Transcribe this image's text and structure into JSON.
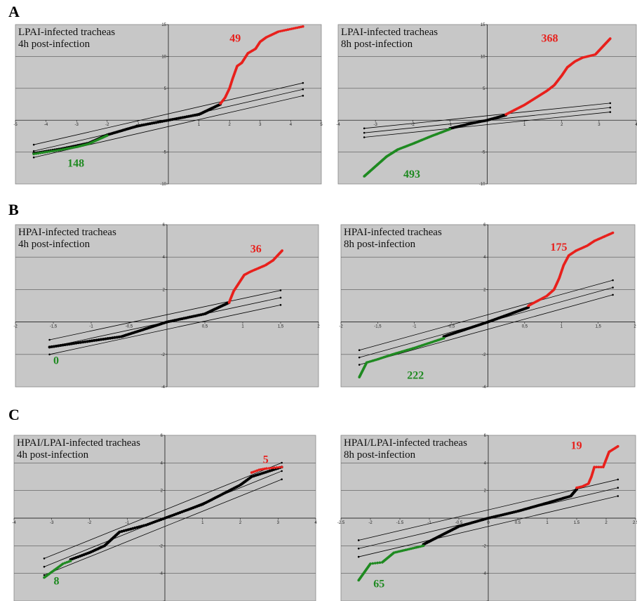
{
  "sections": [
    {
      "label": "A"
    },
    {
      "label": "B"
    },
    {
      "label": "C"
    }
  ],
  "colors": {
    "up": "#e8201c",
    "down": "#1f8a21",
    "mid": "#000000",
    "panel": "#c7c7c7"
  },
  "chart_data": [
    {
      "type": "scatter",
      "section": "A",
      "title_lines": [
        "LPAI-infected tracheas",
        "4h post-infection"
      ],
      "xlim": [
        -5,
        5
      ],
      "ylim": [
        -10,
        15
      ],
      "xticks": [
        -5,
        -4,
        -3,
        -2,
        -1,
        0,
        1,
        2,
        3,
        4,
        5
      ],
      "yticks": [
        -10,
        -5,
        0,
        5,
        10,
        15
      ],
      "yticklabels": [
        "-10",
        "-5",
        "",
        "5",
        "10",
        "15"
      ],
      "gridlines_y": [
        -5,
        5,
        10
      ],
      "diag": {
        "slope": 1.1,
        "offset": 1.0,
        "x0": -4.4,
        "x1": 4.4
      },
      "central": [
        [
          -4.4,
          -5.2
        ],
        [
          -3.5,
          -4.5
        ],
        [
          -2.6,
          -3.6
        ],
        [
          -2.0,
          -2.3
        ],
        [
          -1.0,
          -0.9
        ],
        [
          0,
          0
        ],
        [
          1.0,
          0.9
        ],
        [
          1.7,
          2.5
        ]
      ],
      "up": [
        [
          1.7,
          2.6
        ],
        [
          1.85,
          3.5
        ],
        [
          2.0,
          5.0
        ],
        [
          2.1,
          6.5
        ],
        [
          2.25,
          8.5
        ],
        [
          2.4,
          9.0
        ],
        [
          2.6,
          10.5
        ],
        [
          2.85,
          11.2
        ],
        [
          3.0,
          12.3
        ],
        [
          3.2,
          13.0
        ],
        [
          3.6,
          13.9
        ],
        [
          4.4,
          14.7
        ]
      ],
      "down": [
        [
          -2.0,
          -2.4
        ],
        [
          -2.6,
          -3.7
        ],
        [
          -3.0,
          -4.2
        ],
        [
          -3.6,
          -4.7
        ],
        [
          -4.4,
          -5.3
        ]
      ],
      "up_count": {
        "text": "49",
        "x": 2.0,
        "y": 12.3
      },
      "down_count": {
        "text": "148",
        "x": -3.3,
        "y": -7.3
      }
    },
    {
      "type": "scatter",
      "section": "A",
      "title_lines": [
        "LPAI-infected tracheas",
        "8h post-infection"
      ],
      "xlim": [
        -4,
        4
      ],
      "ylim": [
        -10,
        15
      ],
      "xticks": [
        -4,
        -3,
        -2,
        -1,
        0,
        1,
        2,
        3,
        4
      ],
      "yticks": [
        -10,
        -5,
        0,
        5,
        10,
        15
      ],
      "yticklabels": [
        "-10",
        "-5",
        "",
        "5",
        "10",
        "15"
      ],
      "gridlines_y": [
        -5,
        5,
        10
      ],
      "diag": {
        "slope": 0.6,
        "offset": 0.7,
        "x0": -3.3,
        "x1": 3.3
      },
      "central": [
        [
          -1.0,
          -1.3
        ],
        [
          -0.5,
          -0.6
        ],
        [
          0,
          0
        ],
        [
          0.5,
          0.8
        ]
      ],
      "up": [
        [
          0.5,
          0.9
        ],
        [
          0.8,
          1.8
        ],
        [
          1.0,
          2.4
        ],
        [
          1.3,
          3.5
        ],
        [
          1.6,
          4.6
        ],
        [
          1.8,
          5.5
        ],
        [
          2.0,
          7.0
        ],
        [
          2.15,
          8.3
        ],
        [
          2.35,
          9.2
        ],
        [
          2.55,
          9.8
        ],
        [
          2.9,
          10.3
        ],
        [
          3.3,
          12.8
        ]
      ],
      "down": [
        [
          -1.0,
          -1.4
        ],
        [
          -1.5,
          -2.5
        ],
        [
          -2.0,
          -3.7
        ],
        [
          -2.4,
          -4.6
        ],
        [
          -2.7,
          -5.7
        ],
        [
          -3.3,
          -8.8
        ]
      ],
      "up_count": {
        "text": "368",
        "x": 1.45,
        "y": 12.3
      },
      "down_count": {
        "text": "493",
        "x": -2.25,
        "y": -9.0
      }
    },
    {
      "type": "scatter",
      "section": "B",
      "title_lines": [
        "HPAI-infected tracheas",
        "4h post-infection"
      ],
      "xlim": [
        -2,
        2
      ],
      "ylim": [
        -4,
        6
      ],
      "xticks": [
        -2,
        -1.5,
        -1,
        -0.5,
        0,
        0.5,
        1,
        1.5,
        2
      ],
      "xticklabels": [
        "-2",
        "-1,5",
        "-1",
        "-0,5",
        "",
        "0,5",
        "1",
        "1,5",
        "2"
      ],
      "yticks": [
        -4,
        -2,
        0,
        2,
        4,
        6
      ],
      "yticklabels": [
        "-4",
        "-2",
        "",
        "2",
        "4",
        "6"
      ],
      "gridlines_y": [
        -2,
        2,
        4
      ],
      "diag": {
        "slope": 1.0,
        "offset": 0.45,
        "x0": -1.55,
        "x1": 1.5
      },
      "central": [
        [
          -1.55,
          -1.55
        ],
        [
          -1.2,
          -1.3
        ],
        [
          -0.6,
          -0.9
        ],
        [
          0,
          0
        ],
        [
          0.5,
          0.5
        ],
        [
          0.82,
          1.2
        ]
      ],
      "up": [
        [
          0.82,
          1.2
        ],
        [
          0.88,
          1.9
        ],
        [
          0.95,
          2.4
        ],
        [
          1.02,
          2.9
        ],
        [
          1.1,
          3.1
        ],
        [
          1.2,
          3.3
        ],
        [
          1.3,
          3.5
        ],
        [
          1.4,
          3.8
        ],
        [
          1.52,
          4.4
        ]
      ],
      "down": [],
      "up_count": {
        "text": "36",
        "x": 1.1,
        "y": 4.3
      },
      "down_count": {
        "text": "0",
        "x": -1.5,
        "y": -2.6
      }
    },
    {
      "type": "scatter",
      "section": "B",
      "title_lines": [
        "HPAI-infected tracheas",
        "8h post-infection"
      ],
      "xlim": [
        -2,
        2
      ],
      "ylim": [
        -4,
        6
      ],
      "xticks": [
        -2,
        -1.5,
        -1,
        -0.5,
        0,
        0.5,
        1,
        1.5,
        2
      ],
      "xticklabels": [
        "-2",
        "-1,5",
        "-1",
        "-0,5",
        "",
        "0,5",
        "1",
        "1,5",
        "2"
      ],
      "yticks": [
        -4,
        -2,
        0,
        2,
        4,
        6
      ],
      "yticklabels": [
        "-4",
        "-2",
        "",
        "2",
        "4",
        "6"
      ],
      "gridlines_y": [
        -2,
        2,
        4
      ],
      "diag": {
        "slope": 1.25,
        "offset": 0.45,
        "x0": -1.75,
        "x1": 1.7
      },
      "central": [
        [
          -0.6,
          -0.9
        ],
        [
          0,
          0
        ],
        [
          0.55,
          0.9
        ]
      ],
      "up": [
        [
          0.55,
          1.0
        ],
        [
          0.8,
          1.6
        ],
        [
          0.9,
          2.0
        ],
        [
          0.97,
          2.7
        ],
        [
          1.03,
          3.5
        ],
        [
          1.1,
          4.1
        ],
        [
          1.2,
          4.4
        ],
        [
          1.35,
          4.7
        ],
        [
          1.45,
          5.0
        ],
        [
          1.7,
          5.5
        ]
      ],
      "down": [
        [
          -0.6,
          -1.0
        ],
        [
          -1.0,
          -1.6
        ],
        [
          -1.3,
          -2.0
        ],
        [
          -1.5,
          -2.3
        ],
        [
          -1.65,
          -2.5
        ],
        [
          -1.75,
          -3.4
        ]
      ],
      "up_count": {
        "text": "175",
        "x": 0.85,
        "y": 4.4
      },
      "down_count": {
        "text": "222",
        "x": -1.1,
        "y": -3.5
      }
    },
    {
      "type": "scatter",
      "section": "C",
      "title_lines": [
        "HPAI/LPAI-infected tracheas",
        "4h post-infection"
      ],
      "xlim": [
        -4,
        4
      ],
      "ylim": [
        -6,
        6
      ],
      "xticks": [
        -4,
        -3,
        -2,
        -1,
        0,
        1,
        2,
        3,
        4
      ],
      "yticks": [
        -6,
        -4,
        -2,
        0,
        2,
        4,
        6
      ],
      "yticklabels": [
        "",
        "-4",
        "-2",
        "",
        "2",
        "4",
        "6"
      ],
      "gridlines_y": [
        -4,
        -2,
        2,
        4
      ],
      "diag": {
        "slope": 1.1,
        "offset": 0.6,
        "x0": -3.2,
        "x1": 3.1
      },
      "central": [
        [
          -2.5,
          -3.0
        ],
        [
          -2.0,
          -2.5
        ],
        [
          -1.6,
          -2.0
        ],
        [
          -1.2,
          -1.0
        ],
        [
          -0.5,
          -0.5
        ],
        [
          0,
          0
        ],
        [
          1.0,
          1.0
        ],
        [
          2.0,
          2.4
        ],
        [
          2.3,
          3.0
        ],
        [
          3.1,
          3.7
        ]
      ],
      "up": [
        [
          2.3,
          3.3
        ],
        [
          2.5,
          3.5
        ],
        [
          2.7,
          3.6
        ],
        [
          3.1,
          3.7
        ]
      ],
      "down": [
        [
          -2.5,
          -3.1
        ],
        [
          -2.7,
          -3.3
        ],
        [
          -2.9,
          -3.7
        ],
        [
          -3.2,
          -4.3
        ]
      ],
      "up_count": {
        "text": "5",
        "x": 2.6,
        "y": 4.0
      },
      "down_count": {
        "text": "8",
        "x": -2.95,
        "y": -4.8
      }
    },
    {
      "type": "scatter",
      "section": "C",
      "title_lines": [
        "HPAI/LPAI-infected tracheas",
        "8h post-infection"
      ],
      "xlim": [
        -2.5,
        2.5
      ],
      "ylim": [
        -6,
        6
      ],
      "xticks": [
        -2.5,
        -2,
        -1.5,
        -1,
        -0.5,
        0,
        0.5,
        1,
        1.5,
        2,
        2.5
      ],
      "xticklabels": [
        "-2.5",
        "-2",
        "-1.5",
        "-1",
        "-0.5",
        "0",
        "0.5",
        "1",
        "1.5",
        "2",
        "2.5"
      ],
      "yticks": [
        -6,
        -4,
        -2,
        0,
        2,
        4,
        6
      ],
      "yticklabels": [
        "",
        "-4",
        "-2",
        "",
        "2",
        "4",
        "6"
      ],
      "gridlines_y": [
        -4,
        -2,
        2,
        4
      ],
      "diag": {
        "slope": 1.0,
        "offset": 0.6,
        "x0": -2.2,
        "x1": 2.2
      },
      "central": [
        [
          -1.1,
          -1.9
        ],
        [
          -0.5,
          -0.6
        ],
        [
          0,
          0
        ],
        [
          0.5,
          0.5
        ],
        [
          1.0,
          1.1
        ],
        [
          1.4,
          1.6
        ],
        [
          1.5,
          2.1
        ]
      ],
      "up": [
        [
          1.5,
          2.2
        ],
        [
          1.6,
          2.3
        ],
        [
          1.7,
          2.5
        ],
        [
          1.75,
          3.0
        ],
        [
          1.8,
          3.7
        ],
        [
          1.95,
          3.7
        ],
        [
          2.05,
          4.8
        ],
        [
          2.2,
          5.2
        ]
      ],
      "down": [
        [
          -1.1,
          -2.0
        ],
        [
          -1.4,
          -2.3
        ],
        [
          -1.6,
          -2.5
        ],
        [
          -1.8,
          -3.2
        ],
        [
          -2.0,
          -3.3
        ],
        [
          -2.2,
          -4.5
        ]
      ],
      "up_count": {
        "text": "19",
        "x": 1.4,
        "y": 5.0
      },
      "down_count": {
        "text": "65",
        "x": -1.95,
        "y": -5.0
      }
    }
  ]
}
